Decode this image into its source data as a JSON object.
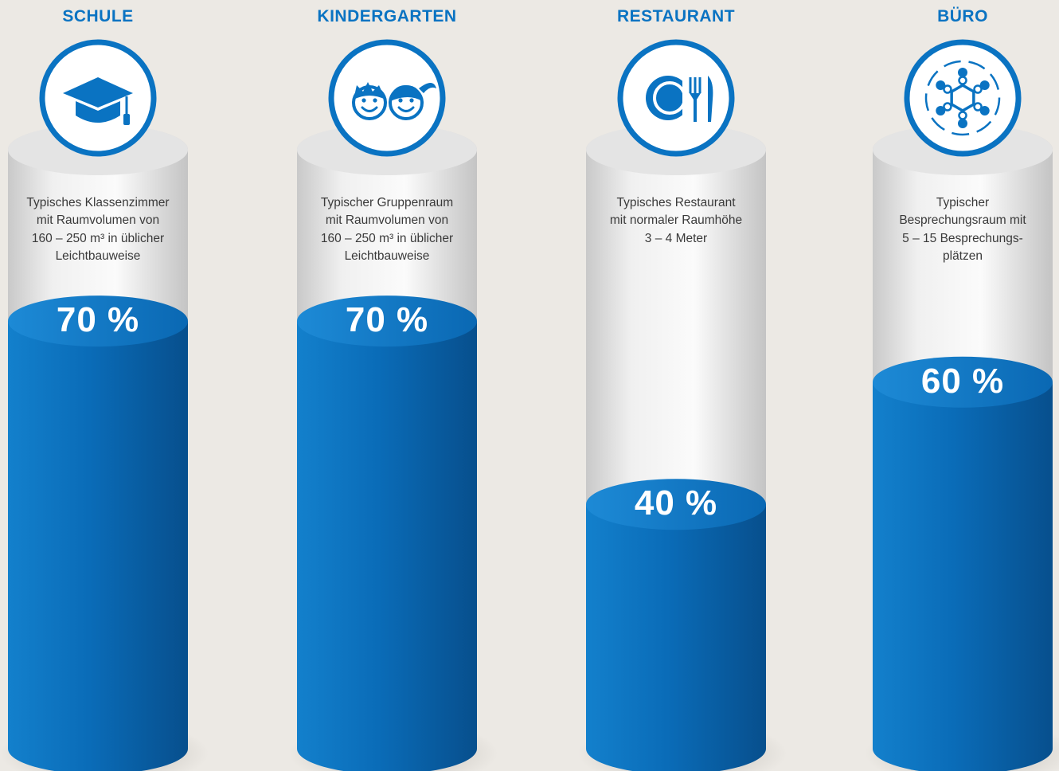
{
  "colors": {
    "accent": "#0a73c2",
    "accent_dark": "#074f8d",
    "background": "#ece9e4",
    "cylinder_light": "#f4f4f4"
  },
  "chart_data": {
    "type": "bar",
    "ylim": [
      0,
      100
    ],
    "categories": [
      "SCHULE",
      "KINDERGARTEN",
      "RESTAURANT",
      "BÜRO"
    ],
    "values": [
      70,
      70,
      40,
      60
    ],
    "value_labels": [
      "70 %",
      "70 %",
      "40 %",
      "60 %"
    ],
    "descriptions": [
      [
        "Typisches Klassenzimmer",
        "mit Raumvolumen von",
        "160 – 250 m³ in üblicher",
        "Leichtbauweise"
      ],
      [
        "Typischer Gruppenraum",
        "mit Raumvolumen von",
        "160 – 250 m³ in üblicher",
        "Leichtbauweise"
      ],
      [
        "Typisches Restaurant",
        "mit normaler Raumhöhe",
        "3 – 4 Meter"
      ],
      [
        "Typischer",
        "Besprechungsraum mit",
        "5 – 15 Besprechungs-",
        "plätzen"
      ]
    ],
    "icons": [
      "graduation-cap-icon",
      "children-faces-icon",
      "plate-cutlery-icon",
      "meeting-table-icon"
    ]
  }
}
